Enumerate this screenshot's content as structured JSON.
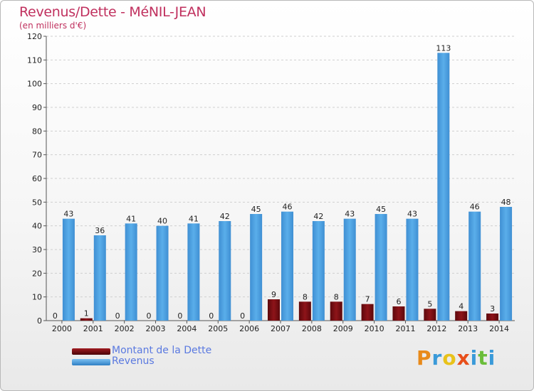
{
  "chart_data": {
    "type": "bar",
    "title": "Revenus/Dette - MéNIL-JEAN",
    "subtitle": "(en milliers d'€)",
    "categories": [
      "2000",
      "2001",
      "2002",
      "2003",
      "2004",
      "2005",
      "2006",
      "2007",
      "2008",
      "2009",
      "2010",
      "2011",
      "2012",
      "2013",
      "2014"
    ],
    "series": [
      {
        "name": "Montant de la Dette",
        "color": "#7a0f14",
        "values": [
          0,
          1,
          0,
          0,
          0,
          0,
          0,
          9,
          8,
          8,
          7,
          6,
          5,
          4,
          3
        ]
      },
      {
        "name": "Revenus",
        "color": "#4c9fe0",
        "values": [
          43,
          36,
          41,
          40,
          41,
          42,
          45,
          46,
          42,
          43,
          45,
          43,
          113,
          46,
          48
        ]
      }
    ],
    "ylim": [
      0,
      120
    ],
    "yticks": [
      0,
      10,
      20,
      30,
      40,
      50,
      60,
      70,
      80,
      90,
      100,
      110,
      120
    ],
    "grid": true,
    "legend_position": "bottom-left"
  },
  "logo": {
    "letters": [
      "P",
      "r",
      "o",
      "x",
      "i",
      "t",
      "i"
    ],
    "colors": [
      "#e88a1a",
      "#3a9ad9",
      "#e8c21a",
      "#e84f1a",
      "#3a9ad9",
      "#6bbd3a",
      "#3a9ad9"
    ]
  }
}
